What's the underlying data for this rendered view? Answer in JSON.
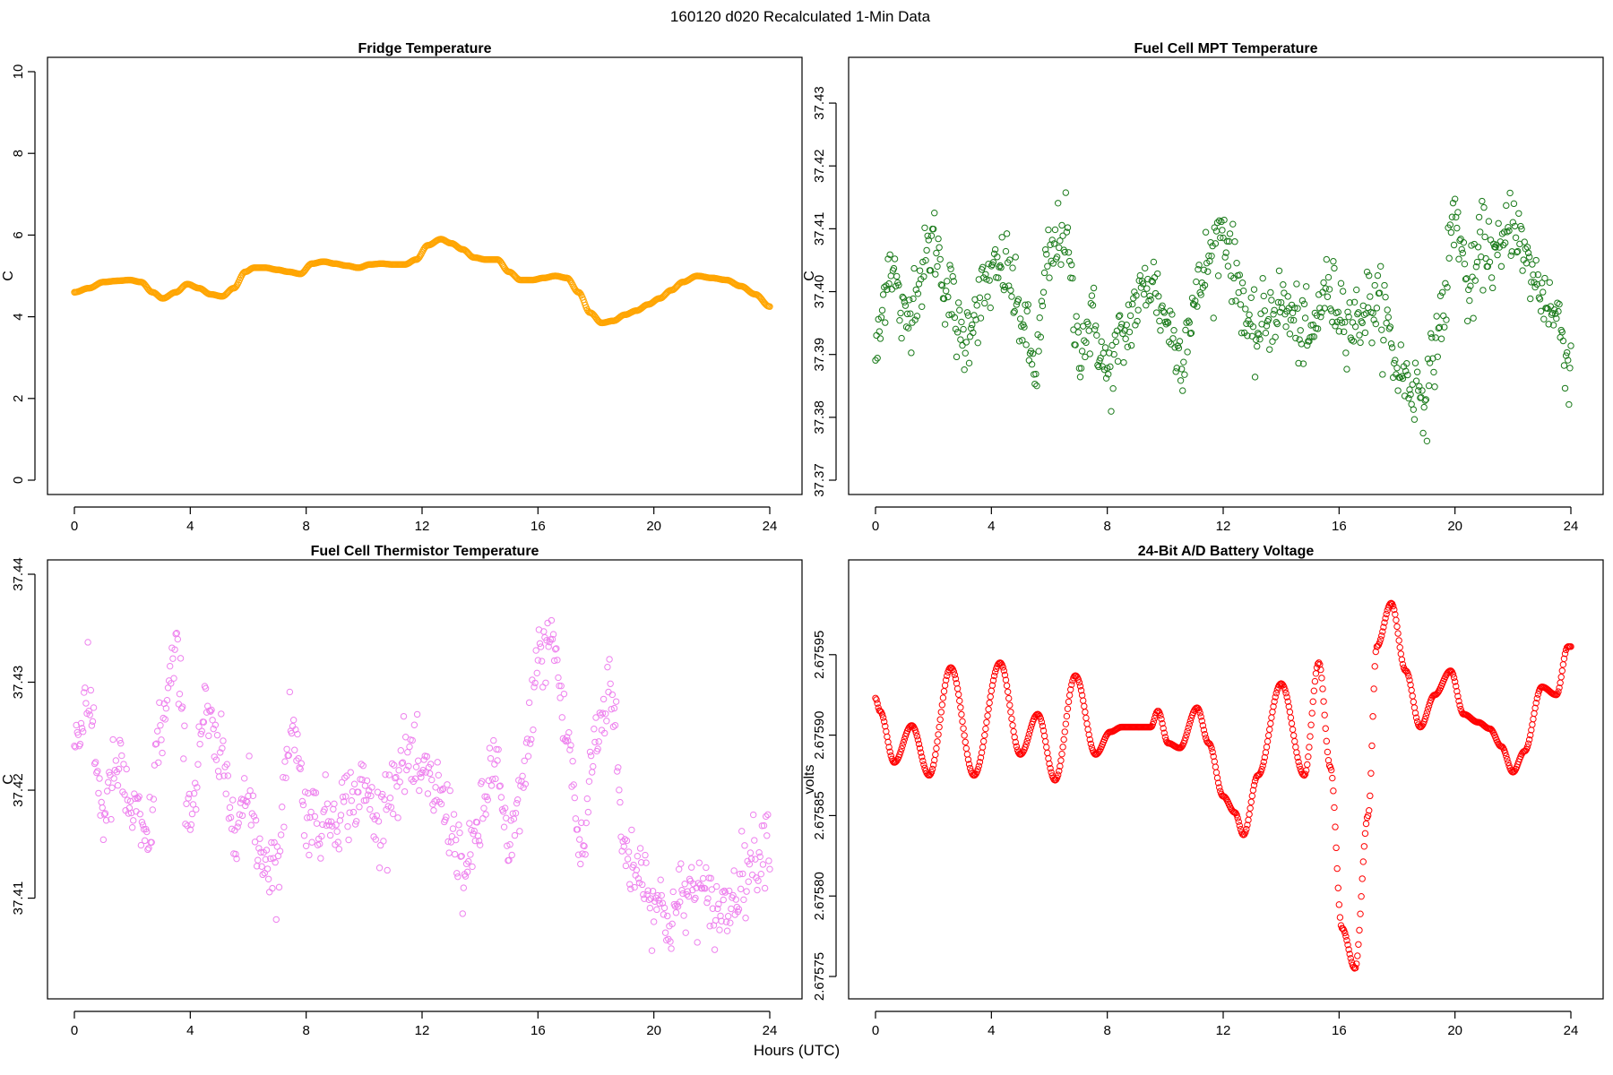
{
  "figure": {
    "title": "160120   d020   Recalculated 1-Min Data",
    "xlabel": "Hours (UTC)"
  },
  "chart_data": [
    {
      "id": "fridge",
      "type": "line",
      "title": "Fridge Temperature",
      "xlabel": "",
      "ylabel": "C",
      "color": "#FFA500",
      "marker": "open-circle",
      "xlim": [
        0,
        24
      ],
      "ylim": [
        0,
        10
      ],
      "xticks": [
        0,
        4,
        8,
        12,
        16,
        20,
        24
      ],
      "yticks": [
        0,
        2,
        4,
        6,
        8,
        10
      ],
      "ytick_labels": [
        "0",
        "2",
        "4",
        "6",
        "8",
        "10"
      ],
      "series": [
        {
          "name": "Fridge Temperature",
          "x": [
            0,
            0.5,
            1,
            1.5,
            1.9,
            2.3,
            2.7,
            3.05,
            3.5,
            3.9,
            4.3,
            4.7,
            5.1,
            5.5,
            5.9,
            6.2,
            6.6,
            7.0,
            7.4,
            7.8,
            8.2,
            8.6,
            9.0,
            9.4,
            9.8,
            10.2,
            10.6,
            11.0,
            11.4,
            11.8,
            12.2,
            12.65,
            13.0,
            13.4,
            13.8,
            14.2,
            14.6,
            15.0,
            15.4,
            15.8,
            16.2,
            16.6,
            17.0,
            17.4,
            17.8,
            18.2,
            18.6,
            19.0,
            19.4,
            19.8,
            20.2,
            20.6,
            21.0,
            21.5,
            22.0,
            22.5,
            23.0,
            23.5,
            24.0
          ],
          "values": [
            4.6,
            4.7,
            4.85,
            4.88,
            4.9,
            4.85,
            4.6,
            4.45,
            4.6,
            4.8,
            4.7,
            4.55,
            4.5,
            4.7,
            5.1,
            5.2,
            5.2,
            5.15,
            5.1,
            5.05,
            5.3,
            5.35,
            5.3,
            5.25,
            5.2,
            5.28,
            5.3,
            5.28,
            5.28,
            5.4,
            5.75,
            5.9,
            5.8,
            5.65,
            5.45,
            5.4,
            5.4,
            5.1,
            4.9,
            4.9,
            4.95,
            5.0,
            4.95,
            4.6,
            4.1,
            3.85,
            3.9,
            4.05,
            4.15,
            4.3,
            4.45,
            4.65,
            4.85,
            5.0,
            4.95,
            4.9,
            4.75,
            4.55,
            4.25
          ]
        }
      ]
    },
    {
      "id": "mpt",
      "type": "scatter",
      "title": "Fuel Cell MPT Temperature",
      "xlabel": "",
      "ylabel": "C",
      "color": "#1A7A1A",
      "marker": "open-circle",
      "xlim": [
        0,
        24
      ],
      "ylim": [
        37.37,
        37.435
      ],
      "xticks": [
        0,
        4,
        8,
        12,
        16,
        20,
        24
      ],
      "yticks": [
        37.37,
        37.38,
        37.39,
        37.4,
        37.41,
        37.42,
        37.43
      ],
      "ytick_labels": [
        "37.37",
        "37.38",
        "37.39",
        "37.40",
        "37.41",
        "37.42",
        "37.43"
      ],
      "series": [
        {
          "name": "Fuel Cell MPT Temperature",
          "x": [
            0,
            0.5,
            1,
            1.5,
            2,
            2.5,
            3,
            3.5,
            4,
            4.5,
            5,
            5.5,
            6,
            6.5,
            7,
            7.5,
            8,
            8.5,
            9,
            9.5,
            10,
            10.5,
            11,
            11.5,
            12,
            12.5,
            13,
            13.5,
            14,
            14.5,
            15,
            15.5,
            16,
            16.5,
            17,
            17.5,
            18,
            18.5,
            19,
            19.5,
            20,
            20.5,
            21,
            21.5,
            22,
            22.5,
            23,
            23.5,
            24
          ],
          "values": [
            37.39,
            37.405,
            37.395,
            37.402,
            37.408,
            37.4,
            37.392,
            37.398,
            37.402,
            37.404,
            37.396,
            37.388,
            37.405,
            37.41,
            37.392,
            37.395,
            37.387,
            37.392,
            37.398,
            37.402,
            37.396,
            37.39,
            37.398,
            37.405,
            37.41,
            37.402,
            37.392,
            37.396,
            37.398,
            37.395,
            37.392,
            37.4,
            37.398,
            37.395,
            37.398,
            37.397,
            37.388,
            37.385,
            37.384,
            37.395,
            37.412,
            37.4,
            37.408,
            37.405,
            37.412,
            37.404,
            37.4,
            37.396,
            37.388
          ],
          "spread": 0.006
        }
      ]
    },
    {
      "id": "thermistor",
      "type": "scatter",
      "title": "Fuel Cell Thermistor Temperature",
      "xlabel": "",
      "ylabel": "C",
      "color": "#EE82EE",
      "marker": "open-circle",
      "xlim": [
        0,
        24
      ],
      "ylim": [
        37.402,
        37.44
      ],
      "xticks": [
        0,
        4,
        8,
        12,
        16,
        20,
        24
      ],
      "yticks": [
        37.41,
        37.42,
        37.43,
        37.44
      ],
      "ytick_labels": [
        "37.41",
        "37.42",
        "37.43",
        "37.44"
      ],
      "series": [
        {
          "name": "Fuel Cell Thermistor Temperature",
          "x": [
            0,
            0.5,
            1,
            1.5,
            2,
            2.5,
            3,
            3.5,
            4,
            4.5,
            5,
            5.5,
            6,
            6.5,
            7,
            7.5,
            8,
            8.5,
            9,
            9.5,
            10,
            10.5,
            11,
            11.5,
            12,
            12.5,
            13,
            13.5,
            14,
            14.5,
            15,
            15.5,
            16,
            16.5,
            17,
            17.5,
            18,
            18.5,
            19,
            19.5,
            20,
            20.5,
            21,
            21.5,
            22,
            22.5,
            23,
            23.5,
            24
          ],
          "values": [
            37.425,
            37.428,
            37.418,
            37.422,
            37.418,
            37.415,
            37.426,
            37.432,
            37.418,
            37.427,
            37.423,
            37.418,
            37.419,
            37.414,
            37.413,
            37.427,
            37.418,
            37.417,
            37.418,
            37.419,
            37.42,
            37.417,
            37.421,
            37.423,
            37.421,
            37.42,
            37.417,
            37.412,
            37.417,
            37.423,
            37.414,
            37.421,
            37.432,
            37.434,
            37.425,
            37.414,
            37.425,
            37.43,
            37.414,
            37.413,
            37.41,
            37.408,
            37.41,
            37.411,
            37.409,
            37.409,
            37.412,
            37.414,
            37.416
          ],
          "spread": 0.0035
        }
      ]
    },
    {
      "id": "battery",
      "type": "line",
      "title": "24-Bit A/D Battery Voltage",
      "xlabel": "",
      "ylabel": "volts",
      "color": "#FF0000",
      "marker": "open-circle",
      "xlim": [
        0,
        24
      ],
      "ylim": [
        2.675745,
        2.676
      ],
      "xticks": [
        0,
        4,
        8,
        12,
        16,
        20,
        24
      ],
      "yticks": [
        2.67575,
        2.6758,
        2.67585,
        2.6759,
        2.67595
      ],
      "ytick_labels": [
        "2.67575",
        "2.67580",
        "2.67585",
        "2.67590",
        "2.67595"
      ],
      "series": [
        {
          "name": "24-Bit A/D Battery Voltage",
          "x": [
            0,
            0.15,
            0.65,
            1.25,
            1.85,
            2.6,
            3.4,
            4.3,
            5.0,
            5.6,
            6.2,
            6.9,
            7.6,
            8.1,
            8.5,
            9.0,
            9.5,
            9.75,
            10.1,
            10.5,
            11.1,
            11.5,
            12.0,
            12.4,
            12.7,
            13.2,
            14.0,
            14.8,
            15.3,
            15.7,
            16.1,
            16.55,
            17.0,
            17.3,
            17.8,
            18.3,
            18.8,
            19.3,
            19.85,
            20.3,
            20.8,
            21.2,
            21.6,
            22.0,
            22.4,
            23.0,
            23.5,
            23.9,
            24.0
          ],
          "values": [
            2.675923,
            2.675915,
            2.675883,
            2.675906,
            2.675875,
            2.675942,
            2.675875,
            2.675945,
            2.675888,
            2.675913,
            2.675872,
            2.675937,
            2.675888,
            2.675902,
            2.675905,
            2.675905,
            2.675905,
            2.675915,
            2.675895,
            2.675892,
            2.675917,
            2.675895,
            2.675862,
            2.675852,
            2.675838,
            2.675875,
            2.675932,
            2.675875,
            2.675945,
            2.67588,
            2.67578,
            2.675755,
            2.67585,
            2.675955,
            2.675982,
            2.67594,
            2.675905,
            2.675925,
            2.67594,
            2.675913,
            2.675908,
            2.675904,
            2.675893,
            2.675877,
            2.67589,
            2.67593,
            2.675925,
            2.675955,
            2.675955
          ]
        }
      ]
    }
  ]
}
